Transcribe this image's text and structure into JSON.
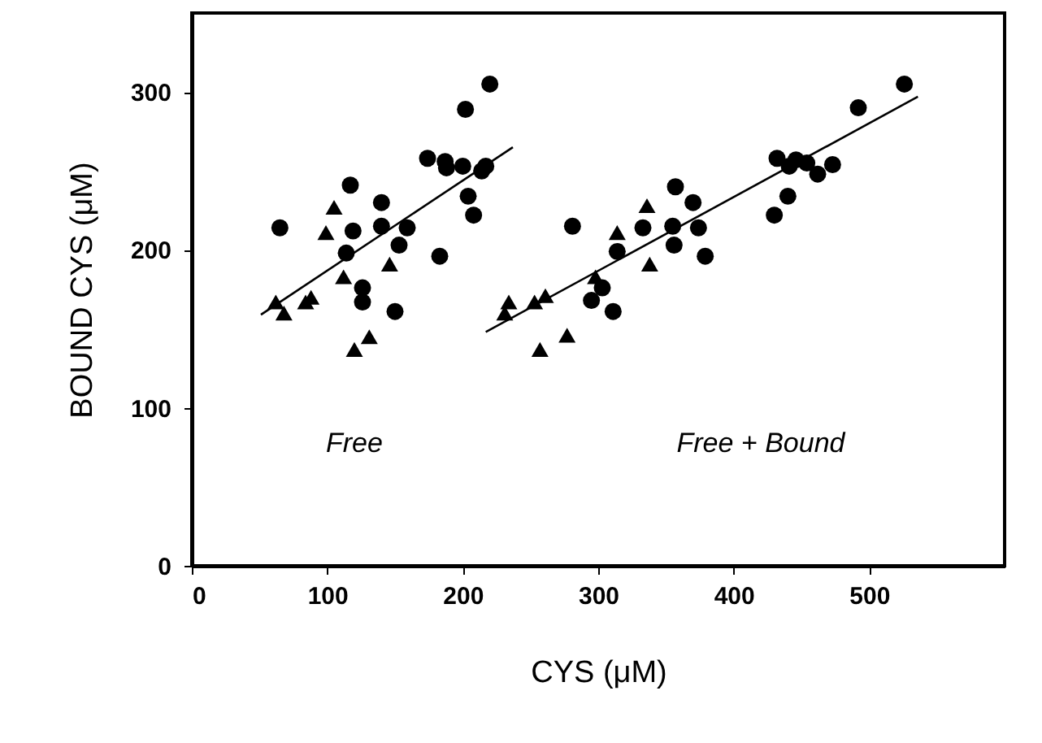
{
  "chart_data": {
    "type": "scatter",
    "xlabel": "CYS (μM)",
    "ylabel": "BOUND CYS (μM)",
    "xlim": [
      0,
      600
    ],
    "ylim": [
      0,
      350
    ],
    "xticks": [
      0,
      100,
      200,
      300,
      400,
      500
    ],
    "yticks": [
      0,
      100,
      200,
      300
    ],
    "grid": false,
    "annotations": [
      "Free",
      "Free + Bound"
    ],
    "series": [
      {
        "marker": "circle",
        "color": "#000000",
        "x": [
          65,
          117,
          119,
          140,
          140,
          159,
          153,
          114,
          126,
          126,
          150,
          183,
          174,
          187,
          188,
          200,
          202,
          220,
          204,
          208,
          214,
          217,
          281,
          295,
          303,
          311,
          314,
          333,
          357,
          370,
          355,
          356,
          374,
          379,
          432,
          441,
          446,
          454,
          462,
          473,
          440,
          430,
          492,
          526
        ],
        "values": [
          214,
          241,
          212,
          230,
          215,
          214,
          203,
          198,
          176,
          167,
          161,
          196,
          258,
          256,
          252,
          253,
          289,
          305,
          234,
          222,
          250,
          253,
          215,
          168,
          176,
          161,
          199,
          214,
          240,
          230,
          215,
          203,
          214,
          196,
          258,
          253,
          257,
          255,
          248,
          254,
          234,
          222,
          290,
          305
        ]
      },
      {
        "marker": "triangle",
        "color": "#000000",
        "x": [
          62,
          68,
          84,
          88,
          105,
          99,
          112,
          146,
          131,
          120,
          234,
          231,
          253,
          261,
          257,
          277,
          314,
          336,
          338,
          298
        ],
        "values": [
          167,
          160,
          167,
          170,
          227,
          211,
          183,
          191,
          145,
          137,
          167,
          160,
          167,
          171,
          137,
          146,
          211,
          228,
          191,
          183
        ]
      },
      {
        "type": "line",
        "color": "#000000",
        "x": [
          51,
          237
        ],
        "values": [
          159,
          265
        ]
      },
      {
        "type": "line",
        "color": "#000000",
        "x": [
          217,
          536
        ],
        "values": [
          148,
          297
        ]
      }
    ]
  }
}
